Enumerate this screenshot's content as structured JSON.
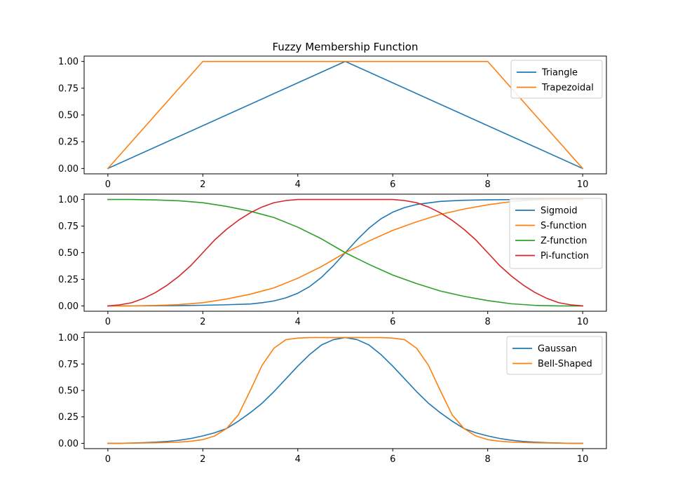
{
  "chart_data": [
    {
      "type": "line",
      "title": "Fuzzy Membership Function",
      "xlabel": "",
      "ylabel": "",
      "xlim": [
        -0.5,
        10.5
      ],
      "ylim": [
        -0.05,
        1.05
      ],
      "xticks": [
        0,
        2,
        4,
        6,
        8,
        10
      ],
      "yticks": [
        0.0,
        0.25,
        0.5,
        0.75,
        1.0
      ],
      "grid": false,
      "legend": "top-right",
      "series": [
        {
          "name": "Triangle",
          "color": "#1f77b4",
          "x": [
            0,
            5,
            10
          ],
          "y": [
            0,
            1,
            0
          ]
        },
        {
          "name": "Trapezoidal",
          "color": "#ff7f0e",
          "x": [
            0,
            2,
            8,
            10
          ],
          "y": [
            0,
            1,
            1,
            0
          ]
        }
      ]
    },
    {
      "type": "line",
      "title": "",
      "xlabel": "",
      "ylabel": "",
      "xlim": [
        -0.5,
        10.5
      ],
      "ylim": [
        -0.05,
        1.05
      ],
      "xticks": [
        0,
        2,
        4,
        6,
        8,
        10
      ],
      "yticks": [
        0.0,
        0.25,
        0.5,
        0.75,
        1.0
      ],
      "grid": false,
      "legend": "top-right",
      "series": [
        {
          "name": "Sigmoid",
          "color": "#1f77b4",
          "x": [
            0,
            0.5,
            1,
            1.5,
            2,
            2.5,
            3,
            3.25,
            3.5,
            3.75,
            4,
            4.25,
            4.5,
            4.75,
            5,
            5.25,
            5.5,
            5.75,
            6,
            6.25,
            6.5,
            7,
            7.5,
            8,
            8.5,
            9,
            10
          ],
          "y": [
            0.0,
            0.0005,
            0.0015,
            0.003,
            0.006,
            0.011,
            0.018,
            0.03,
            0.047,
            0.076,
            0.119,
            0.182,
            0.269,
            0.378,
            0.5,
            0.622,
            0.731,
            0.818,
            0.881,
            0.924,
            0.953,
            0.982,
            0.993,
            0.997,
            0.999,
            1.0,
            1.0
          ]
        },
        {
          "name": "S-function",
          "color": "#ff7f0e",
          "x": [
            0,
            0.5,
            1,
            1.5,
            2,
            2.5,
            3,
            3.5,
            4,
            4.5,
            5,
            5.5,
            6,
            6.5,
            7,
            7.5,
            8,
            8.5,
            9,
            9.5,
            10
          ],
          "y": [
            0.0,
            0.0,
            0.004,
            0.012,
            0.03,
            0.065,
            0.11,
            0.17,
            0.26,
            0.37,
            0.5,
            0.61,
            0.71,
            0.79,
            0.86,
            0.91,
            0.95,
            0.98,
            0.995,
            1.0,
            1.0
          ]
        },
        {
          "name": "Z-function",
          "color": "#2ca02c",
          "x": [
            0,
            0.5,
            1,
            1.5,
            2,
            2.5,
            3,
            3.5,
            4,
            4.5,
            5,
            5.5,
            6,
            6.5,
            7,
            7.5,
            8,
            8.5,
            9,
            9.5,
            10
          ],
          "y": [
            1.0,
            1.0,
            0.996,
            0.988,
            0.97,
            0.935,
            0.89,
            0.83,
            0.74,
            0.63,
            0.5,
            0.39,
            0.29,
            0.21,
            0.14,
            0.09,
            0.05,
            0.02,
            0.005,
            0.0,
            0.0
          ]
        },
        {
          "name": "Pi-function",
          "color": "#d62728",
          "x": [
            0,
            0.25,
            0.5,
            0.75,
            1,
            1.25,
            1.5,
            1.75,
            2,
            2.25,
            2.5,
            2.75,
            3,
            3.25,
            3.5,
            3.75,
            4,
            5,
            6,
            6.25,
            6.5,
            6.75,
            7,
            7.25,
            7.5,
            7.75,
            8,
            8.25,
            8.5,
            8.75,
            9,
            9.25,
            9.5,
            9.75,
            10
          ],
          "y": [
            0.0,
            0.01,
            0.03,
            0.07,
            0.125,
            0.195,
            0.28,
            0.38,
            0.5,
            0.62,
            0.72,
            0.805,
            0.875,
            0.93,
            0.97,
            0.99,
            1.0,
            1.0,
            1.0,
            0.99,
            0.97,
            0.93,
            0.875,
            0.805,
            0.72,
            0.62,
            0.5,
            0.38,
            0.28,
            0.195,
            0.125,
            0.07,
            0.03,
            0.01,
            0.0
          ]
        }
      ]
    },
    {
      "type": "line",
      "title": "",
      "xlabel": "",
      "ylabel": "",
      "xlim": [
        -0.5,
        10.5
      ],
      "ylim": [
        -0.05,
        1.05
      ],
      "xticks": [
        0,
        2,
        4,
        6,
        8,
        10
      ],
      "yticks": [
        0.0,
        0.25,
        0.5,
        0.75,
        1.0
      ],
      "grid": false,
      "legend": "top-right",
      "series": [
        {
          "name": "Gaussan",
          "color": "#1f77b4",
          "x": [
            0,
            0.25,
            0.5,
            0.75,
            1,
            1.25,
            1.5,
            1.75,
            2,
            2.25,
            2.5,
            2.75,
            3,
            3.25,
            3.5,
            3.75,
            4,
            4.25,
            4.5,
            4.75,
            5,
            5.25,
            5.5,
            5.75,
            6,
            6.25,
            6.5,
            6.75,
            7,
            7.25,
            7.5,
            7.75,
            8,
            8.25,
            8.5,
            8.75,
            9,
            9.25,
            9.5,
            9.75,
            10
          ],
          "y": [
            0.0,
            0.0,
            0.003,
            0.006,
            0.011,
            0.018,
            0.029,
            0.046,
            0.07,
            0.1,
            0.14,
            0.21,
            0.29,
            0.38,
            0.49,
            0.61,
            0.73,
            0.84,
            0.93,
            0.98,
            1.0,
            0.98,
            0.93,
            0.84,
            0.73,
            0.61,
            0.49,
            0.38,
            0.29,
            0.21,
            0.14,
            0.1,
            0.07,
            0.046,
            0.029,
            0.018,
            0.011,
            0.006,
            0.003,
            0.0,
            0.0
          ]
        },
        {
          "name": "Bell-Shaped",
          "color": "#ff7f0e",
          "x": [
            0,
            0.25,
            0.5,
            0.75,
            1,
            1.25,
            1.5,
            1.75,
            2,
            2.25,
            2.5,
            2.75,
            3,
            3.25,
            3.5,
            3.75,
            4,
            4.25,
            4.5,
            4.75,
            5,
            5.25,
            5.5,
            5.75,
            6,
            6.25,
            6.5,
            6.75,
            7,
            7.25,
            7.5,
            7.75,
            8,
            8.25,
            8.5,
            8.75,
            9,
            9.25,
            9.5,
            9.75,
            10
          ],
          "y": [
            0.0,
            0.0,
            0.002,
            0.003,
            0.005,
            0.008,
            0.012,
            0.02,
            0.035,
            0.07,
            0.14,
            0.27,
            0.5,
            0.74,
            0.9,
            0.98,
            0.995,
            1.0,
            1.0,
            1.0,
            1.0,
            1.0,
            1.0,
            1.0,
            0.995,
            0.98,
            0.9,
            0.74,
            0.5,
            0.27,
            0.14,
            0.07,
            0.035,
            0.02,
            0.012,
            0.008,
            0.005,
            0.003,
            0.002,
            0.0,
            0.0
          ]
        }
      ]
    }
  ]
}
